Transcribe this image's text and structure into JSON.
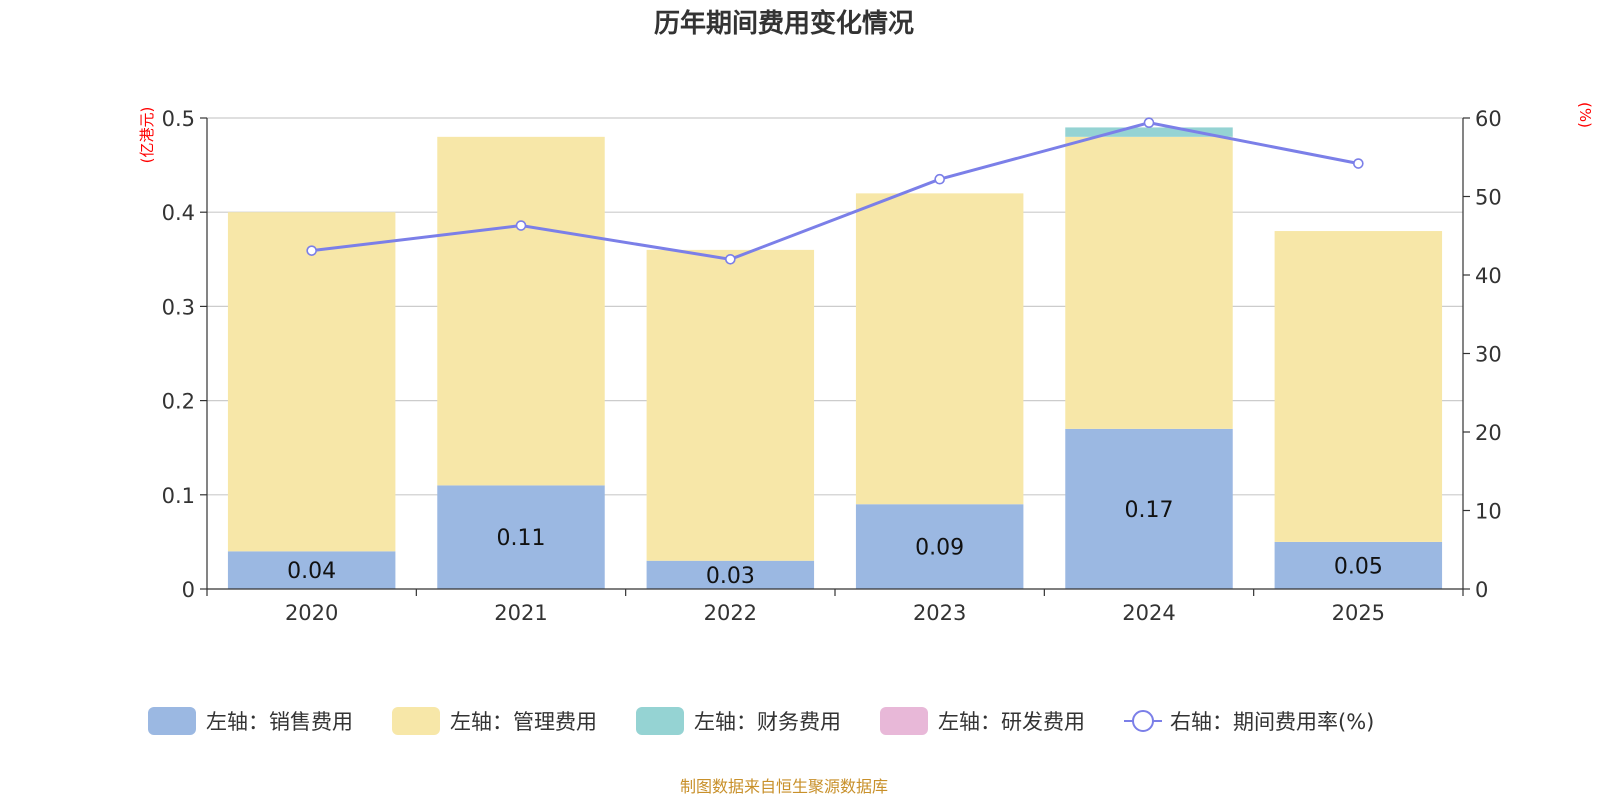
{
  "chart_data": {
    "type": "bar",
    "stacked": true,
    "title": "历年期间费用变化情况",
    "categories": [
      "2020",
      "2021",
      "2022",
      "2023",
      "2024",
      "2025"
    ],
    "left_axis": {
      "unit": "(亿港元)",
      "ylim": [
        0,
        0.5
      ],
      "ticks": [
        "0",
        "0.1",
        "0.2",
        "0.3",
        "0.4",
        "0.5"
      ],
      "tick_values": [
        0,
        0.1,
        0.2,
        0.3,
        0.4,
        0.5
      ]
    },
    "right_axis": {
      "unit": "(%)",
      "ylim": [
        0,
        60
      ],
      "ticks": [
        "0",
        "10",
        "20",
        "30",
        "40",
        "50",
        "60"
      ],
      "tick_values": [
        0,
        10,
        20,
        30,
        40,
        50,
        60
      ]
    },
    "series": [
      {
        "name": "左轴：销售费用",
        "axis": "left",
        "color": "#9bb8e2",
        "values": [
          0.04,
          0.11,
          0.03,
          0.09,
          0.17,
          0.05
        ],
        "labels": [
          "0.04",
          "0.11",
          "0.03",
          "0.09",
          "0.17",
          "0.05"
        ]
      },
      {
        "name": "左轴：管理费用",
        "axis": "left",
        "color": "#f7e7a8",
        "values": [
          0.36,
          0.37,
          0.33,
          0.33,
          0.31,
          0.33
        ]
      },
      {
        "name": "左轴：财务费用",
        "axis": "left",
        "color": "#95d3d3",
        "values": [
          0,
          0,
          0,
          0,
          0.01,
          0
        ]
      },
      {
        "name": "左轴：研发费用",
        "axis": "left",
        "color": "#e8b8d8",
        "values": [
          0,
          0,
          0,
          0,
          0,
          0
        ]
      },
      {
        "name": "右轴：期间费用率(%)",
        "axis": "right",
        "type": "line",
        "color": "#7b7fe8",
        "values": [
          43.1,
          46.3,
          42.0,
          52.2,
          59.4,
          54.2
        ]
      }
    ],
    "source": "制图数据来自恒生聚源数据库"
  }
}
